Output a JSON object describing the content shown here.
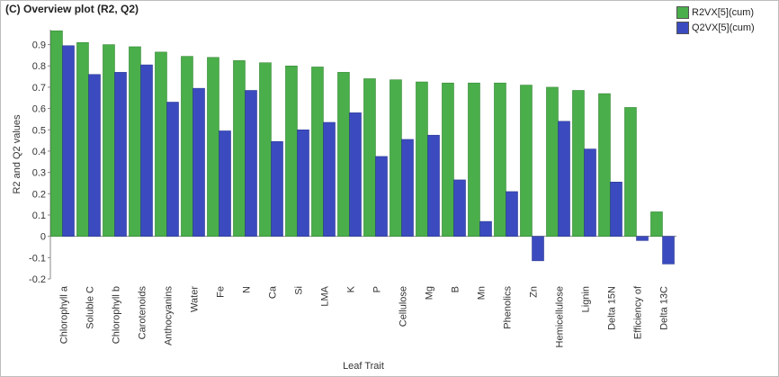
{
  "chart_data": {
    "type": "bar",
    "title": "(C) Overview plot (R2, Q2)",
    "xlabel": "Leaf Trait",
    "ylabel": "R2 and Q2 values",
    "ylim": [
      -0.2,
      0.97
    ],
    "yticks": [
      "0.9",
      "0.8",
      "0.7",
      "0.6",
      "0.5",
      "0.4",
      "0.3",
      "0.2",
      "0.1",
      "0",
      "-0.1",
      "-0.2"
    ],
    "yticks_values": [
      0.9,
      0.8,
      0.7,
      0.6,
      0.5,
      0.4,
      0.3,
      0.2,
      0.1,
      0,
      -0.1,
      -0.2
    ],
    "legend_position": "top-right",
    "categories": [
      "Chlorophyll a",
      "Soluble C",
      "Chlorophyll b",
      "Carotenoids",
      "Anthocyanins",
      "Water",
      "Fe",
      "N",
      "Ca",
      "Si",
      "LMA",
      "K",
      "P",
      "Cellulose",
      "Mg",
      "B",
      "Mn",
      "Phenolics",
      "Zn",
      "Hemicellulose",
      "Lignin",
      "Delta 15N",
      "Efficiency of",
      "Delta 13C"
    ],
    "series": [
      {
        "name": "R2VX[5](cum)",
        "color": "#4aae4a",
        "values": [
          0.965,
          0.91,
          0.9,
          0.89,
          0.865,
          0.845,
          0.84,
          0.825,
          0.815,
          0.8,
          0.795,
          0.77,
          0.74,
          0.735,
          0.725,
          0.72,
          0.72,
          0.72,
          0.71,
          0.7,
          0.685,
          0.67,
          0.605,
          0.115
        ]
      },
      {
        "name": "Q2VX[5](cum)",
        "color": "#3b4bbf",
        "values": [
          0.895,
          0.76,
          0.77,
          0.805,
          0.63,
          0.695,
          0.495,
          0.685,
          0.445,
          0.5,
          0.535,
          0.58,
          0.375,
          0.455,
          0.475,
          0.265,
          0.07,
          0.21,
          -0.115,
          0.54,
          0.41,
          0.255,
          -0.02,
          -0.13
        ]
      }
    ]
  }
}
